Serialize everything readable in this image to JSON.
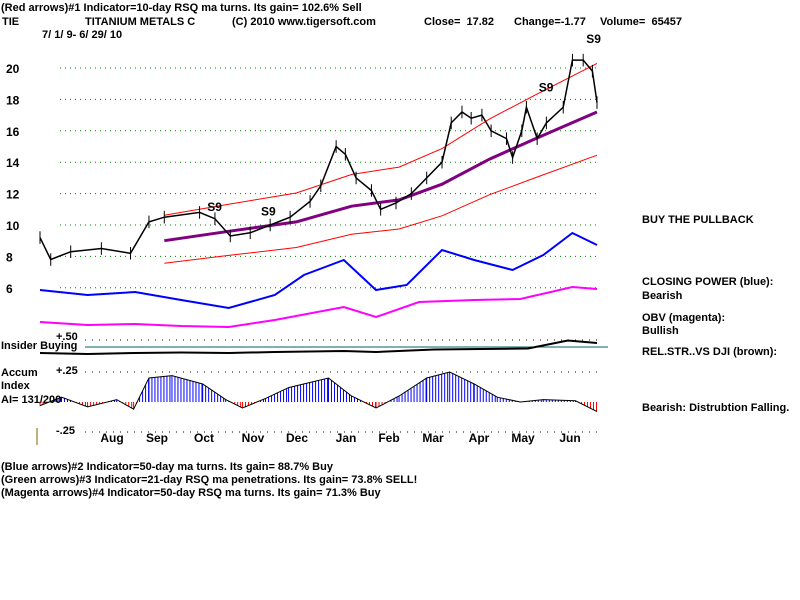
{
  "header": {
    "line1": "(Red arrows)#1 Indicator=10-day RSQ ma turns. Its gain= 102.6% Sell",
    "ticker": "TIE",
    "company": "TITANIUM METALS C",
    "copyright": "(C) 2010 www.tigersoft.com",
    "close": "Close=  17.82",
    "change": "Change=-1.77",
    "volume": "Volume=  65457",
    "date_range": "7/ 1/ 9- 6/ 29/ 10"
  },
  "footer": {
    "line1": "(Blue arrows)#2 Indicator=50-day ma turns. Its gain= 88.7% Buy",
    "line2": "(Green arrows)#3 Indicator=21-day RSQ ma penetrations. Its gain= 73.8% SELL!",
    "line3": "(Magenta arrows)#4 Indicator=50-day RSQ ma turns. Its gain= 71.3% Buy"
  },
  "side_notes": {
    "buy_pullback": "BUY THE PULLBACK",
    "closing_power": "CLOSING POWER (blue):",
    "closing_power_status": "Bearish",
    "obv": "OBV (magenta):",
    "obv_status": "Bullish",
    "rel_str": "REL.STR..VS DJI (brown):",
    "distribution": "Bearish: Distrubtion Falling."
  },
  "lower_labels": {
    "insider": "Insider Buying",
    "accum": "Accum",
    "index": "Index",
    "ai": "AI= 131/200",
    "plus50": "+.50",
    "plus25": "+.25",
    "minus25": "-.25"
  },
  "colors": {
    "price": "#000000",
    "ma50": "#800080",
    "bands": "#ff0000",
    "closing_power": "#0000ff",
    "obv": "#ff00ff",
    "rel_str": "#000000",
    "ai_pos": "#0000ff",
    "ai_neg": "#ff0000",
    "grid": "#008000"
  },
  "chart_data": {
    "type": "line",
    "y_ticks": [
      "20",
      "18",
      "16",
      "14",
      "12",
      "10",
      "8",
      "6"
    ],
    "ylim": [
      6,
      20
    ],
    "x_ticks": [
      "Aug",
      "Sep",
      "Oct",
      "Nov",
      "Dec",
      "Jan",
      "Feb",
      "Mar",
      "Apr",
      "May",
      "Jun"
    ],
    "xlim": [
      "2009-07-01",
      "2010-06-29"
    ],
    "grid": true,
    "price": [
      [
        "2009-07-01",
        9.2
      ],
      [
        "2009-07-08",
        7.8
      ],
      [
        "2009-07-21",
        8.3
      ],
      [
        "2009-08-10",
        8.5
      ],
      [
        "2009-08-29",
        8.2
      ],
      [
        "2009-09-10",
        10.2
      ],
      [
        "2009-09-20",
        10.5
      ],
      [
        "2009-10-13",
        10.8
      ],
      [
        "2009-10-23",
        10.4
      ],
      [
        "2009-11-02",
        9.3
      ],
      [
        "2009-11-15",
        9.5
      ],
      [
        "2009-11-28",
        10.0
      ],
      [
        "2009-12-11",
        10.5
      ],
      [
        "2009-12-24",
        11.5
      ],
      [
        "2009-12-31",
        12.5
      ],
      [
        "2010-01-10",
        15.0
      ],
      [
        "2010-01-16",
        14.5
      ],
      [
        "2010-01-23",
        13.0
      ],
      [
        "2010-02-02",
        12.2
      ],
      [
        "2010-02-08",
        11.0
      ],
      [
        "2010-02-18",
        11.4
      ],
      [
        "2010-02-28",
        12.0
      ],
      [
        "2010-03-10",
        13.0
      ],
      [
        "2010-03-20",
        14.0
      ],
      [
        "2010-03-26",
        16.5
      ],
      [
        "2010-04-02",
        17.2
      ],
      [
        "2010-04-08",
        16.8
      ],
      [
        "2010-04-15",
        17.0
      ],
      [
        "2010-04-21",
        16.0
      ],
      [
        "2010-05-01",
        15.5
      ],
      [
        "2010-05-05",
        14.3
      ],
      [
        "2010-05-11",
        16.0
      ],
      [
        "2010-05-14",
        17.5
      ],
      [
        "2010-05-21",
        15.5
      ],
      [
        "2010-05-27",
        16.5
      ],
      [
        "2010-06-07",
        17.5
      ],
      [
        "2010-06-13",
        20.5
      ],
      [
        "2010-06-20",
        20.5
      ],
      [
        "2010-06-26",
        19.8
      ],
      [
        "2010-06-29",
        17.8
      ]
    ],
    "ma50": [
      [
        "2009-09-20",
        9.0
      ],
      [
        "2009-11-01",
        9.6
      ],
      [
        "2009-12-15",
        10.2
      ],
      [
        "2010-01-20",
        11.2
      ],
      [
        "2010-02-20",
        11.6
      ],
      [
        "2010-03-20",
        12.6
      ],
      [
        "2010-04-20",
        14.2
      ],
      [
        "2010-05-20",
        15.5
      ],
      [
        "2010-06-29",
        17.2
      ]
    ],
    "closing_power": [
      [
        "2009-07-01",
        30
      ],
      [
        "2009-08-01",
        25
      ],
      [
        "2009-09-01",
        28
      ],
      [
        "2009-10-01",
        20
      ],
      [
        "2009-11-01",
        12
      ],
      [
        "2009-12-01",
        25
      ],
      [
        "2009-12-20",
        45
      ],
      [
        "2010-01-15",
        60
      ],
      [
        "2010-02-05",
        30
      ],
      [
        "2010-02-25",
        35
      ],
      [
        "2010-03-20",
        70
      ],
      [
        "2010-04-10",
        60
      ],
      [
        "2010-05-05",
        50
      ],
      [
        "2010-05-25",
        65
      ],
      [
        "2010-06-13",
        87
      ],
      [
        "2010-06-29",
        75
      ]
    ],
    "obv": [
      [
        "2009-07-01",
        0
      ],
      [
        "2009-08-01",
        -3
      ],
      [
        "2009-09-01",
        -2
      ],
      [
        "2009-10-01",
        -4
      ],
      [
        "2009-11-01",
        -5
      ],
      [
        "2009-12-01",
        2
      ],
      [
        "2010-01-15",
        15
      ],
      [
        "2010-02-05",
        5
      ],
      [
        "2010-03-05",
        20
      ],
      [
        "2010-04-10",
        22
      ],
      [
        "2010-05-10",
        23
      ],
      [
        "2010-06-13",
        35
      ],
      [
        "2010-06-29",
        33
      ]
    ],
    "rel_str": [
      [
        "2009-07-01",
        0
      ],
      [
        "2009-08-01",
        -2
      ],
      [
        "2009-09-01",
        0
      ],
      [
        "2009-10-01",
        1
      ],
      [
        "2009-11-01",
        0
      ],
      [
        "2009-12-01",
        2
      ],
      [
        "2010-01-15",
        4
      ],
      [
        "2010-02-05",
        2
      ],
      [
        "2010-03-15",
        7
      ],
      [
        "2010-04-15",
        8
      ],
      [
        "2010-05-15",
        9
      ],
      [
        "2010-06-10",
        25
      ],
      [
        "2010-06-29",
        20
      ]
    ],
    "accum_index": [
      [
        "2009-07-01",
        -0.03
      ],
      [
        "2009-07-15",
        0.04
      ],
      [
        "2009-08-01",
        -0.04
      ],
      [
        "2009-08-20",
        0.02
      ],
      [
        "2009-08-31",
        -0.06
      ],
      [
        "2009-09-10",
        0.2
      ],
      [
        "2009-09-25",
        0.22
      ],
      [
        "2009-10-15",
        0.15
      ],
      [
        "2009-10-30",
        0.02
      ],
      [
        "2009-11-10",
        -0.05
      ],
      [
        "2009-11-25",
        0.03
      ],
      [
        "2009-12-10",
        0.12
      ],
      [
        "2010-01-05",
        0.2
      ],
      [
        "2010-01-20",
        0.05
      ],
      [
        "2010-02-05",
        -0.05
      ],
      [
        "2010-02-20",
        0.05
      ],
      [
        "2010-03-10",
        0.2
      ],
      [
        "2010-03-25",
        0.25
      ],
      [
        "2010-04-10",
        0.15
      ],
      [
        "2010-04-25",
        0.04
      ],
      [
        "2010-05-10",
        0.0
      ],
      [
        "2010-05-25",
        0.02
      ],
      [
        "2010-06-15",
        0.01
      ],
      [
        "2010-06-29",
        -0.08
      ]
    ],
    "signals": [
      {
        "label": "S9",
        "date": "2009-10-18",
        "price": 10.9
      },
      {
        "label": "S9",
        "date": "2009-11-22",
        "price": 10.6
      },
      {
        "label": "S9",
        "date": "2010-05-22",
        "price": 18.5
      },
      {
        "label": "S9",
        "date": "2010-06-22",
        "price": 21.6
      }
    ]
  }
}
